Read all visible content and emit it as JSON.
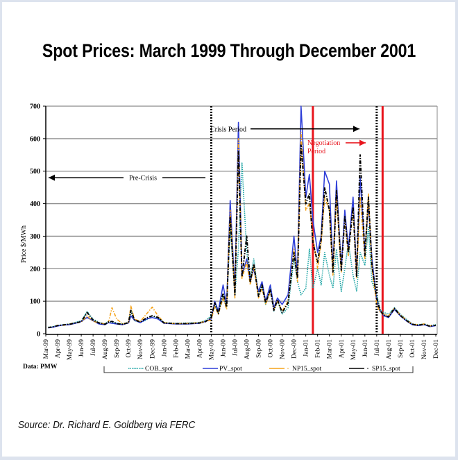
{
  "page": {
    "title": "Spot Prices: March 1999 Through December 2001",
    "source": "Source: Dr. Richard E. Goldberg via FERC",
    "data_note": "Data: PMW"
  },
  "chart_data": {
    "type": "line",
    "title": "Spot Prices: March 1999 Through December 2001",
    "xlabel": "",
    "ylabel": "Price $/MWh",
    "ylim": [
      0,
      700
    ],
    "yticks": [
      0,
      100,
      200,
      300,
      400,
      500,
      600,
      700
    ],
    "grid": true,
    "legend_position": "bottom",
    "categories": [
      "Mar-99",
      "Apr-99",
      "May-99",
      "Jun-99",
      "Jul-99",
      "Aug-99",
      "Sep-99",
      "Oct-99",
      "Nov-99",
      "Dec-99",
      "Jan-00",
      "Feb-00",
      "Mar-00",
      "Apr-00",
      "May-00",
      "Jun-00",
      "Jul-00",
      "Aug-00",
      "Sep-00",
      "Oct-00",
      "Nov-00",
      "Dec-00",
      "Jan-01",
      "Feb-01",
      "Mar-01",
      "Apr-01",
      "May-01",
      "Jun-01",
      "Jul-01",
      "Aug-01",
      "Sep-01",
      "Oct-01",
      "Nov-01",
      "Dec-01"
    ],
    "x_month_index_note": "x values are months since Mar-99 (0 = Mar-99, 33 = Dec-01)",
    "series": [
      {
        "name": "COB_spot",
        "color": "#1aa3a3",
        "style": "dotted",
        "x": [
          0.2,
          0.6,
          1,
          1.5,
          2,
          2.5,
          3,
          3.5,
          4,
          4.5,
          5,
          5.3,
          5.6,
          6,
          6.5,
          7,
          7.2,
          7.5,
          8,
          8.5,
          9,
          9.5,
          10,
          11,
          12,
          13,
          13.5,
          14,
          14.3,
          14.6,
          15,
          15.3,
          15.6,
          16,
          16.3,
          16.6,
          17,
          17.3,
          17.6,
          18,
          18.3,
          18.6,
          19,
          19.3,
          19.6,
          20,
          20.5,
          21,
          21.3,
          21.6,
          22,
          22.3,
          22.6,
          23,
          23.3,
          23.6,
          24,
          24.3,
          24.6,
          25,
          25.3,
          25.6,
          26,
          26.3,
          26.6,
          27,
          27.3,
          27.6,
          28,
          28.3,
          28.6,
          29,
          29.5,
          30,
          30.5,
          31,
          31.5,
          32,
          32.5,
          33
        ],
        "values": [
          20,
          22,
          25,
          28,
          30,
          35,
          40,
          68,
          45,
          35,
          30,
          38,
          35,
          32,
          30,
          35,
          70,
          40,
          35,
          42,
          55,
          48,
          35,
          32,
          33,
          35,
          40,
          55,
          90,
          65,
          120,
          80,
          330,
          120,
          260,
          525,
          250,
          170,
          230,
          120,
          150,
          90,
          140,
          70,
          100,
          60,
          80,
          230,
          160,
          120,
          140,
          260,
          140,
          200,
          150,
          250,
          180,
          140,
          260,
          130,
          200,
          280,
          180,
          130,
          250,
          210,
          330,
          160,
          120,
          75,
          65,
          60,
          80,
          60,
          45,
          30,
          28,
          30,
          25,
          28
        ]
      },
      {
        "name": "PV_spot",
        "color": "#2f3fd8",
        "style": "solid",
        "x": [
          0.2,
          0.6,
          1,
          1.5,
          2,
          2.5,
          3,
          3.5,
          4,
          4.5,
          5,
          5.3,
          5.6,
          6,
          6.5,
          7,
          7.2,
          7.5,
          8,
          8.5,
          9,
          9.5,
          10,
          11,
          12,
          13,
          13.5,
          14,
          14.3,
          14.6,
          15,
          15.3,
          15.6,
          16,
          16.3,
          16.6,
          17,
          17.3,
          17.6,
          18,
          18.3,
          18.6,
          19,
          19.3,
          19.6,
          20,
          20.5,
          21,
          21.3,
          21.6,
          22,
          22.3,
          22.6,
          23,
          23.3,
          23.6,
          24,
          24.3,
          24.6,
          25,
          25.3,
          25.6,
          26,
          26.3,
          26.6,
          27,
          27.3,
          27.6,
          28,
          28.3,
          28.6,
          29,
          29.5,
          30,
          30.5,
          31,
          31.5,
          32,
          32.5,
          33
        ],
        "values": [
          18,
          20,
          24,
          27,
          28,
          32,
          38,
          50,
          40,
          30,
          28,
          34,
          32,
          30,
          28,
          33,
          55,
          42,
          34,
          45,
          50,
          45,
          32,
          30,
          30,
          32,
          38,
          45,
          100,
          70,
          150,
          90,
          410,
          130,
          650,
          180,
          230,
          160,
          200,
          130,
          160,
          100,
          150,
          80,
          110,
          90,
          120,
          300,
          180,
          700,
          420,
          490,
          350,
          250,
          300,
          500,
          460,
          200,
          470,
          200,
          380,
          260,
          420,
          180,
          480,
          250,
          400,
          230,
          100,
          70,
          55,
          50,
          75,
          55,
          40,
          28,
          25,
          28,
          22,
          25
        ]
      },
      {
        "name": "NP15_spot",
        "color": "#f5a31a",
        "style": "dash-dot",
        "x": [
          0.2,
          0.6,
          1,
          1.5,
          2,
          2.5,
          3,
          3.5,
          4,
          4.5,
          5,
          5.3,
          5.6,
          6,
          6.5,
          7,
          7.2,
          7.5,
          8,
          8.5,
          9,
          9.5,
          10,
          11,
          12,
          13,
          13.5,
          14,
          14.3,
          14.6,
          15,
          15.3,
          15.6,
          16,
          16.3,
          16.6,
          17,
          17.3,
          17.6,
          18,
          18.3,
          18.6,
          19,
          19.3,
          19.6,
          20,
          20.5,
          21,
          21.3,
          21.6,
          22,
          22.3,
          22.6,
          23,
          23.3,
          23.6,
          24,
          24.3,
          24.6,
          25,
          25.3,
          25.6,
          26,
          26.3,
          26.6,
          27,
          27.3,
          27.6,
          28,
          28.3,
          28.6,
          29,
          29.5,
          30,
          30.5,
          31,
          31.5,
          32,
          32.5,
          33
        ],
        "values": [
          19,
          21,
          26,
          26,
          30,
          34,
          36,
          55,
          38,
          34,
          30,
          35,
          80,
          45,
          30,
          35,
          85,
          45,
          38,
          60,
          82,
          55,
          34,
          31,
          32,
          34,
          38,
          42,
          85,
          60,
          110,
          75,
          380,
          110,
          600,
          170,
          220,
          150,
          210,
          110,
          140,
          90,
          130,
          75,
          100,
          70,
          100,
          260,
          160,
          620,
          380,
          400,
          300,
          200,
          280,
          420,
          380,
          180,
          430,
          190,
          350,
          240,
          380,
          170,
          420,
          230,
          430,
          200,
          90,
          65,
          60,
          55,
          78,
          58,
          42,
          30,
          27,
          30,
          24,
          27
        ]
      },
      {
        "name": "SP15_spot",
        "color": "#000000",
        "style": "dash-dot",
        "x": [
          0.2,
          0.6,
          1,
          1.5,
          2,
          2.5,
          3,
          3.5,
          4,
          4.5,
          5,
          5.3,
          5.6,
          6,
          6.5,
          7,
          7.2,
          7.5,
          8,
          8.5,
          9,
          9.5,
          10,
          11,
          12,
          13,
          13.5,
          14,
          14.3,
          14.6,
          15,
          15.3,
          15.6,
          16,
          16.3,
          16.6,
          17,
          17.3,
          17.6,
          18,
          18.3,
          18.6,
          19,
          19.3,
          19.6,
          20,
          20.5,
          21,
          21.3,
          21.6,
          22,
          22.3,
          22.6,
          23,
          23.3,
          23.6,
          24,
          24.3,
          24.6,
          25,
          25.3,
          25.6,
          26,
          26.3,
          26.6,
          27,
          27.3,
          27.6,
          28,
          28.3,
          28.6,
          29,
          29.5,
          30,
          30.5,
          31,
          31.5,
          32,
          32.5,
          33
        ],
        "values": [
          19,
          21,
          25,
          27,
          29,
          33,
          37,
          65,
          42,
          33,
          29,
          36,
          38,
          31,
          29,
          34,
          72,
          43,
          36,
          48,
          55,
          50,
          33,
          31,
          31,
          33,
          37,
          50,
          95,
          62,
          125,
          82,
          360,
          120,
          560,
          175,
          300,
          160,
          215,
          115,
          150,
          95,
          135,
          72,
          105,
          65,
          95,
          250,
          170,
          580,
          400,
          430,
          280,
          220,
          290,
          450,
          380,
          190,
          440,
          195,
          360,
          250,
          390,
          175,
          550,
          240,
          420,
          210,
          110,
          70,
          58,
          52,
          78,
          56,
          41,
          29,
          26,
          29,
          23,
          26
        ]
      }
    ],
    "vertical_markers": [
      {
        "label": "Crisis start",
        "x_month": 14,
        "style": "dotted",
        "color": "#000000"
      },
      {
        "label": "Negotiation start",
        "x_month": 22.6,
        "style": "solid",
        "color": "#e8141c"
      },
      {
        "label": "Crisis end",
        "x_month": 28,
        "style": "dotted",
        "color": "#000000"
      },
      {
        "label": "Negotiation end",
        "x_month": 28.5,
        "style": "solid",
        "color": "#e8141c"
      }
    ],
    "annotations": [
      {
        "text": "Pre-Crisis",
        "color": "#000000",
        "arrow": "left",
        "y": 480
      },
      {
        "text": "Crisis Period",
        "color": "#000000",
        "arrow": "right",
        "y": 630
      },
      {
        "text": "Negotiation Period",
        "line1": "Negotiation",
        "line2": "Period",
        "color": "#e8141c",
        "arrow": "right",
        "y": 570
      }
    ]
  }
}
